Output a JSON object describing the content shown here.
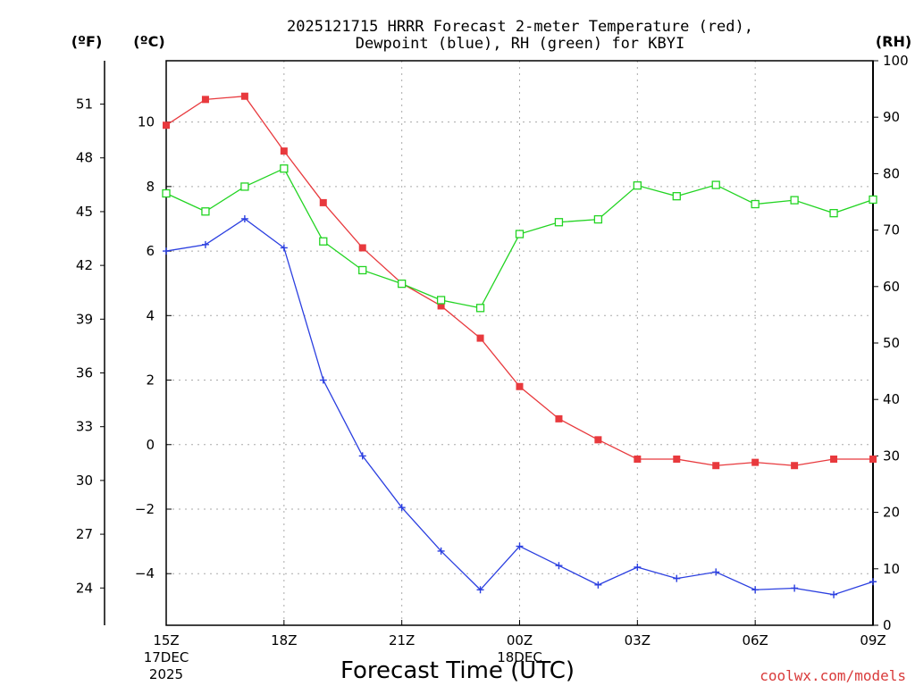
{
  "chart_data": {
    "type": "line",
    "title_line1": "2025121715 HRRR Forecast 2-meter Temperature (red),",
    "title_line2": "Dewpoint (blue), RH (green) for KBYI",
    "xlabel": "Forecast Time (UTC)",
    "credit": "coolwx.com/models",
    "units": {
      "fahrenheit": "(ºF)",
      "celsius": "(ºC)",
      "rh": "(RH)"
    },
    "x_ticks": [
      {
        "hour": 0,
        "label": "15Z",
        "sub1": "17DEC",
        "sub2": "2025"
      },
      {
        "hour": 3,
        "label": "18Z",
        "sub1": "",
        "sub2": ""
      },
      {
        "hour": 6,
        "label": "21Z",
        "sub1": "",
        "sub2": ""
      },
      {
        "hour": 9,
        "label": "00Z",
        "sub1": "18DEC",
        "sub2": ""
      },
      {
        "hour": 12,
        "label": "03Z",
        "sub1": "",
        "sub2": ""
      },
      {
        "hour": 15,
        "label": "06Z",
        "sub1": "",
        "sub2": ""
      },
      {
        "hour": 18,
        "label": "09Z",
        "sub1": "",
        "sub2": ""
      }
    ],
    "x_range": [
      0,
      18
    ],
    "celsius_axis": {
      "range": [
        -5.6,
        11.9
      ],
      "ticks": [
        -4,
        -2,
        0,
        2,
        4,
        6,
        8,
        10
      ]
    },
    "fahrenheit_axis": {
      "ticks": [
        24,
        27,
        30,
        33,
        36,
        39,
        42,
        45,
        48,
        51
      ]
    },
    "rh_axis": {
      "range": [
        0,
        100
      ],
      "ticks": [
        0,
        10,
        20,
        30,
        40,
        50,
        60,
        70,
        80,
        90,
        100
      ]
    },
    "series": [
      {
        "name": "Temperature",
        "axis": "celsius",
        "color": "#e8393d",
        "marker": "filled-square",
        "values": [
          9.9,
          10.7,
          10.8,
          9.1,
          7.5,
          6.1,
          5.0,
          4.3,
          3.3,
          1.8,
          0.8,
          0.15,
          -0.45,
          -0.45,
          -0.65,
          -0.55,
          -0.65,
          -0.45,
          -0.45
        ]
      },
      {
        "name": "Dewpoint",
        "axis": "celsius",
        "color": "#2b3fe0",
        "marker": "plus",
        "values": [
          6.0,
          6.2,
          7.0,
          6.1,
          2.0,
          -0.35,
          -1.95,
          -3.3,
          -4.5,
          -3.15,
          -3.75,
          -4.35,
          -3.8,
          -4.15,
          -3.95,
          -4.5,
          -4.45,
          -4.65,
          -4.25
        ]
      },
      {
        "name": "RH",
        "axis": "rh",
        "color": "#22d422",
        "marker": "open-square",
        "values": [
          76.5,
          73.3,
          77.7,
          80.9,
          68.0,
          62.9,
          60.5,
          57.6,
          56.2,
          69.3,
          71.4,
          71.9,
          77.9,
          76.0,
          78.0,
          74.6,
          75.3,
          73.0,
          75.4
        ]
      }
    ]
  }
}
